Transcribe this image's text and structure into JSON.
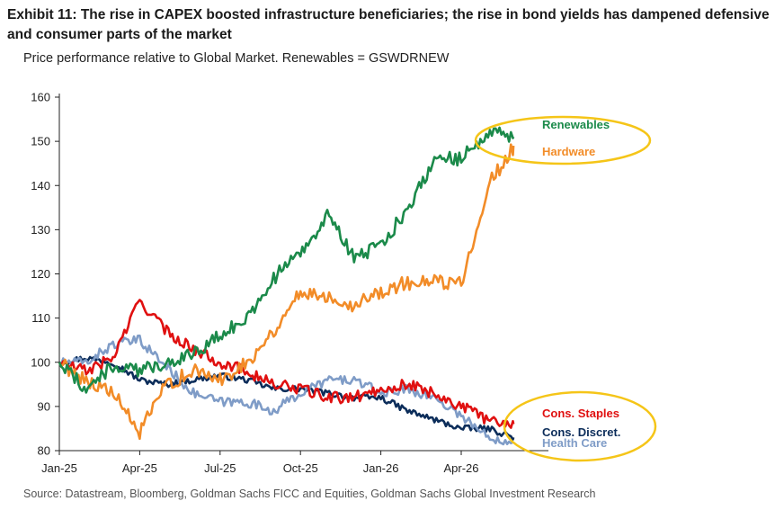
{
  "title": "Exhibit 11: The rise in CAPEX boosted infrastructure beneficiaries; the rise in bond yields has dampened defensive and consumer parts of the market",
  "subtitle": "Price performance relative to Global Market. Renewables = GSWDRNEW",
  "source": "Source: Datastream, Bloomberg, Goldman Sachs FICC and Equities, Goldman Sachs Global Investment Research",
  "chart_data": {
    "type": "line",
    "title": "Exhibit 11: The rise in CAPEX boosted infrastructure beneficiaries; the rise in bond yields has dampened defensive and consumer parts of the market",
    "subtitle": "Price performance relative to Global Market. Renewables = GSWDRNEW",
    "xlabel": "",
    "ylabel": "",
    "ylim": [
      80,
      160
    ],
    "yticks": [
      80,
      90,
      100,
      110,
      120,
      130,
      140,
      150,
      160
    ],
    "xticks": [
      "Jan-25",
      "Apr-25",
      "Jul-25",
      "Oct-25",
      "Jan-26",
      "Apr-26"
    ],
    "x_range": [
      "2025-01",
      "2026-06"
    ],
    "grid": false,
    "legend": "inline labels at series ends",
    "annotations": [
      "ellipse around Renewables and Hardware",
      "ellipse around Cons. Staples, Cons. Discret. and Health Care"
    ],
    "x": [
      "2025-01",
      "2025-02",
      "2025-03",
      "2025-04",
      "2025-05",
      "2025-06",
      "2025-07",
      "2025-08",
      "2025-09",
      "2025-10",
      "2025-11",
      "2025-12",
      "2026-01",
      "2026-02",
      "2026-03",
      "2026-04",
      "2026-05",
      "2026-06"
    ],
    "series": [
      {
        "name": "Renewables",
        "color": "#1b8a4a",
        "values": [
          100,
          94,
          99,
          98,
          100,
          102,
          106,
          110,
          119,
          125,
          133,
          124,
          126,
          135,
          146,
          146,
          152,
          151
        ]
      },
      {
        "name": "Hardware",
        "color": "#f28c28",
        "values": [
          100,
          96,
          93,
          84,
          95,
          98,
          96,
          100,
          107,
          116,
          115,
          113,
          116,
          118,
          118,
          118,
          140,
          149
        ]
      },
      {
        "name": "Cons. Staples",
        "color": "#e01010",
        "values": [
          100,
          98,
          101,
          114,
          107,
          103,
          100,
          98,
          95,
          94,
          92,
          92,
          94,
          95,
          93,
          90,
          87,
          86
        ]
      },
      {
        "name": "Cons. Discret.",
        "color": "#0c2d5a",
        "values": [
          100,
          101,
          100,
          96,
          95,
          96,
          97,
          96,
          94,
          94,
          93,
          92,
          92,
          89,
          87,
          85,
          85,
          83
        ]
      },
      {
        "name": "Health Care",
        "color": "#7f9cc7",
        "values": [
          100,
          100,
          104,
          105,
          99,
          93,
          91,
          91,
          89,
          93,
          96,
          96,
          93,
          94,
          92,
          88,
          83,
          82
        ]
      }
    ]
  }
}
